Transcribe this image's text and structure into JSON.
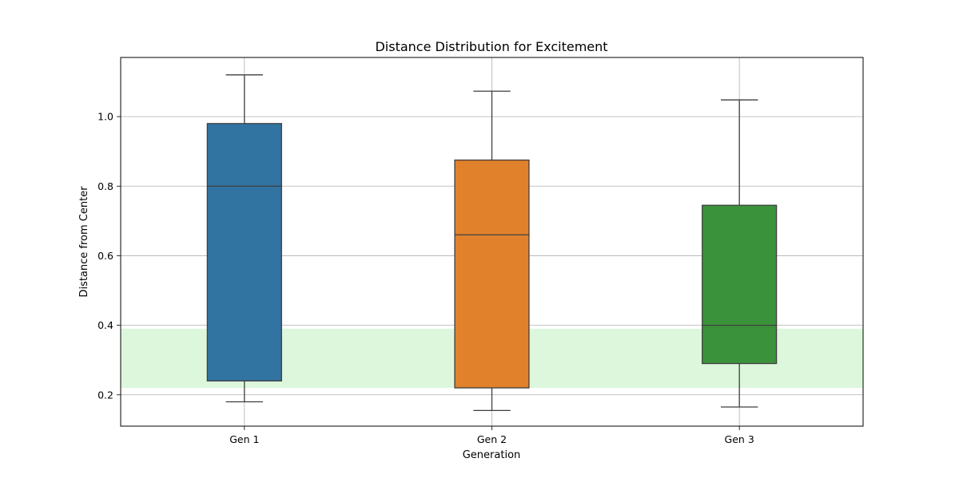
{
  "chart_data": {
    "type": "box",
    "title": "Distance Distribution for Excitement",
    "xlabel": "Generation",
    "ylabel": "Distance from Center",
    "categories": [
      "Gen 1",
      "Gen 2",
      "Gen 3"
    ],
    "boxes": [
      {
        "category": "Gen 1",
        "whisker_low": 0.18,
        "q1": 0.24,
        "median": 0.8,
        "q3": 0.98,
        "whisker_high": 1.12,
        "color": "#3274a1"
      },
      {
        "category": "Gen 2",
        "whisker_low": 0.155,
        "q1": 0.22,
        "median": 0.66,
        "q3": 0.875,
        "whisker_high": 1.073,
        "color": "#e1812c"
      },
      {
        "category": "Gen 3",
        "whisker_low": 0.165,
        "q1": 0.29,
        "median": 0.4,
        "q3": 0.745,
        "whisker_high": 1.048,
        "color": "#3a923a"
      }
    ],
    "shaded_band": {
      "y_low": 0.22,
      "y_high": 0.39,
      "color": "#dcf7dc"
    },
    "ylim": [
      0.11,
      1.17
    ],
    "yticks": [
      0.2,
      0.4,
      0.6,
      0.8,
      1.0
    ],
    "ytick_labels": [
      "0.2",
      "0.4",
      "0.6",
      "0.8",
      "1.0"
    ],
    "grid": true,
    "grid_color": "#b0b0b0"
  }
}
